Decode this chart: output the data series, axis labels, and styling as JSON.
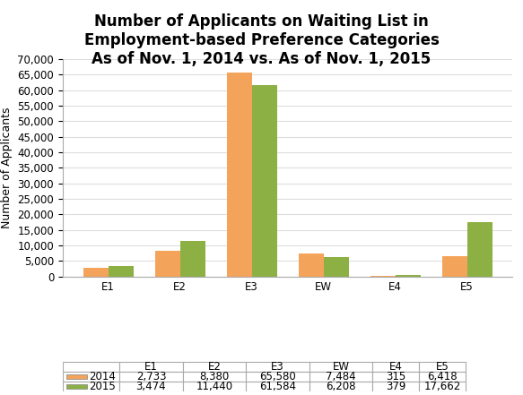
{
  "title": "Number of Applicants on Waiting List in\nEmployment-based Preference Categories\nAs of Nov. 1, 2014 vs. As of Nov. 1, 2015",
  "categories": [
    "E1",
    "E2",
    "E3",
    "EW",
    "E4",
    "E5"
  ],
  "values_2014": [
    2733,
    8380,
    65580,
    7484,
    315,
    6418
  ],
  "values_2015": [
    3474,
    11440,
    61584,
    6208,
    379,
    17662
  ],
  "labels_2014": [
    "2,733",
    "8,380",
    "65,580",
    "7,484",
    "315",
    "6,418"
  ],
  "labels_2015": [
    "3,474",
    "11,440",
    "61,584",
    "6,208",
    "379",
    "17,662"
  ],
  "color_2014": "#F4A45A",
  "color_2015": "#8DB045",
  "legend_2014": "2014",
  "legend_2015": "2015",
  "ylabel": "Number of Applicants",
  "ylim": [
    0,
    70000
  ],
  "yticks": [
    0,
    5000,
    10000,
    15000,
    20000,
    25000,
    30000,
    35000,
    40000,
    45000,
    50000,
    55000,
    60000,
    65000,
    70000
  ],
  "background_color": "#FFFFFF",
  "title_fontsize": 12,
  "axis_fontsize": 9,
  "tick_fontsize": 8.5,
  "table_fontsize": 8.5,
  "grid_color": "#DDDDDD",
  "table_edge_color": "#AAAAAA"
}
